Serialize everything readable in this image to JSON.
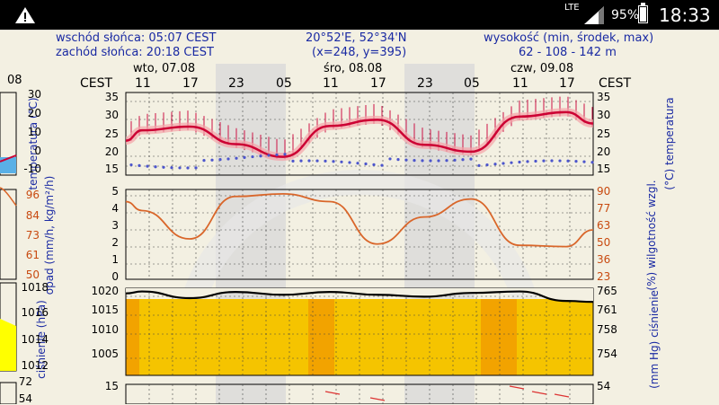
{
  "status_bar": {
    "network": "LTE",
    "battery": "95%",
    "time": "18:33",
    "icons": [
      "warning-icon",
      "signal-icon",
      "battery-icon"
    ]
  },
  "meteogram": {
    "sunrise": "wschód słońca: 05:07 CEST",
    "sunset": "zachód słońca: 20:18 CEST",
    "coords": "20°52'E, 52°34'N",
    "grid_point": "(x=248,  y=395)",
    "elevation_label": "wysokość (min, środek, max)",
    "elevation_values": "62 - 108 - 142 m",
    "timezone": "CEST",
    "days": [
      "wto, 07.08",
      "śro, 08.08",
      "czw, 09.08"
    ],
    "left_day_fragment": "08",
    "hours": [
      "11",
      "17",
      "23",
      "05",
      "11",
      "17",
      "23",
      "05",
      "11",
      "17"
    ],
    "panels": {
      "temperature": {
        "left_label": "temperatura (°C)",
        "right_label": "(°C) temperatura",
        "ticks": [
          "35",
          "30",
          "25",
          "20",
          "15"
        ],
        "left_strip_ticks": [
          "30",
          "20",
          "10",
          "0",
          "-10"
        ]
      },
      "precip": {
        "left_label": "opad (mm/h, kg/m²/h)",
        "right_label": "(%) wilgotność wzgl.",
        "ticks": [
          "5",
          "4",
          "3",
          "2",
          "1",
          "0"
        ],
        "right_ticks": [
          "90",
          "77",
          "63",
          "50",
          "36",
          "23"
        ],
        "left_strip_ticks": [
          "96",
          "84",
          "73",
          "61",
          "50"
        ]
      },
      "pressure": {
        "left_label": "ciśnienie (hPa)",
        "right_label": "(mm Hg) ciśnienie",
        "ticks": [
          "1020",
          "1015",
          "1010",
          "1005"
        ],
        "right_ticks": [
          "765",
          "761",
          "758",
          "754"
        ],
        "left_strip_ticks": [
          "1018",
          "1016",
          "1014",
          "1012"
        ]
      },
      "wind": {
        "left_tick": "15",
        "right_tick": "54",
        "left_strip_ticks": [
          "72",
          "54"
        ]
      }
    }
  },
  "chart_data": [
    {
      "type": "line",
      "x": [
        "11",
        "17",
        "23",
        "05",
        "11",
        "17",
        "23",
        "05",
        "11",
        "17"
      ],
      "series": [
        {
          "values": [
            24.5,
            25.6,
            20.5,
            16.8,
            25.8,
            27.6,
            20.3,
            18.3,
            28.5,
            29.8
          ]
        }
      ],
      "ylim": [
        12,
        35
      ]
    },
    {
      "type": "line",
      "x": [
        "11",
        "17",
        "23",
        "05",
        "11",
        "17",
        "23",
        "05",
        "11",
        "17"
      ],
      "series": [
        {
          "values": [
            75,
            53,
            86,
            88,
            82,
            49,
            70,
            84,
            48,
            47
          ]
        }
      ],
      "ylim": [
        23,
        90
      ]
    },
    {
      "type": "line",
      "x": [
        "11",
        "17",
        "23",
        "05",
        "11",
        "17",
        "23",
        "05",
        "11",
        "17"
      ],
      "series": [
        {
          "values": [
            1019.7,
            1018.3,
            1019.6,
            1019.0,
            1019.6,
            1019.0,
            1018.6,
            1019.4,
            1019.7,
            1017.7
          ]
        }
      ],
      "ylim": [
        1002,
        1020
      ]
    }
  ]
}
